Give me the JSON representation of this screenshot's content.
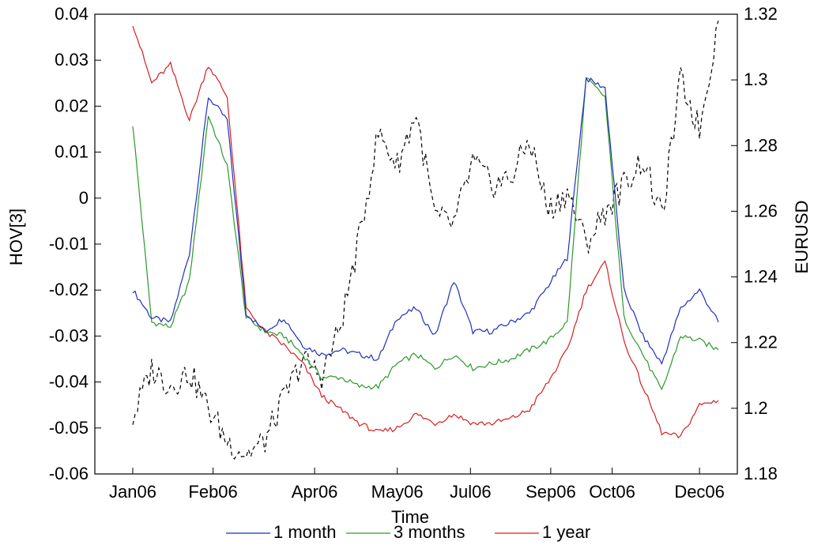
{
  "chart_data": {
    "type": "line",
    "title": "",
    "xlabel": "Time",
    "ylabel_left": "HOV[3]",
    "ylabel_right": "EURUSD",
    "x_ticks": [
      "Jan06",
      "Feb06",
      "Apr06",
      "May06",
      "Jul06",
      "Sep06",
      "Oct06",
      "Dec06"
    ],
    "ylim_left": [
      -0.06,
      0.04
    ],
    "ylim_right": [
      1.18,
      1.32
    ],
    "y_ticks_left": [
      "-0.06",
      "-0.05",
      "-0.04",
      "-0.03",
      "-0.02",
      "-0.01",
      "0",
      "0.01",
      "0.02",
      "0.03",
      "0.04"
    ],
    "y_ticks_right": [
      "1.18",
      "1.2",
      "1.22",
      "1.24",
      "1.26",
      "1.28",
      "1.3",
      "1.32"
    ],
    "grid": false,
    "legend_position": "bottom",
    "x_index": [
      0,
      8,
      16,
      24,
      32,
      40,
      48,
      56,
      64,
      72,
      80,
      88,
      96,
      104,
      112,
      120,
      128,
      136,
      144,
      152,
      160,
      168,
      176,
      184,
      192,
      200,
      208,
      216,
      224,
      232,
      240,
      248
    ],
    "series": [
      {
        "name": "1 month",
        "axis": "left",
        "color": "#1f2fbf",
        "dash": false,
        "values": [
          -0.02,
          -0.026,
          -0.027,
          -0.012,
          0.022,
          0.017,
          -0.025,
          -0.029,
          -0.026,
          -0.032,
          -0.034,
          -0.033,
          -0.034,
          -0.035,
          -0.026,
          -0.024,
          -0.03,
          -0.018,
          -0.029,
          -0.029,
          -0.027,
          -0.025,
          -0.019,
          -0.013,
          0.026,
          0.024,
          -0.02,
          -0.03,
          -0.036,
          -0.024,
          -0.02,
          -0.027
        ]
      },
      {
        "name": "3 months",
        "axis": "left",
        "color": "#2a9a2a",
        "dash": false,
        "values": [
          0.016,
          -0.027,
          -0.028,
          -0.018,
          0.018,
          0.007,
          -0.026,
          -0.029,
          -0.03,
          -0.034,
          -0.039,
          -0.039,
          -0.041,
          -0.041,
          -0.036,
          -0.034,
          -0.037,
          -0.034,
          -0.037,
          -0.036,
          -0.035,
          -0.033,
          -0.031,
          -0.027,
          0.026,
          0.022,
          -0.026,
          -0.034,
          -0.042,
          -0.03,
          -0.031,
          -0.033
        ]
      },
      {
        "name": "1 year",
        "axis": "left",
        "color": "#d42020",
        "dash": false,
        "values": [
          0.038,
          0.025,
          0.029,
          0.017,
          0.029,
          0.022,
          -0.024,
          -0.029,
          -0.032,
          -0.036,
          -0.043,
          -0.046,
          -0.049,
          -0.051,
          -0.05,
          -0.047,
          -0.049,
          -0.047,
          -0.049,
          -0.049,
          -0.048,
          -0.046,
          -0.04,
          -0.033,
          -0.02,
          -0.014,
          -0.031,
          -0.041,
          -0.051,
          -0.052,
          -0.045,
          -0.044
        ]
      },
      {
        "name": "",
        "axis": "right",
        "color": "#000000",
        "dash": true,
        "values": [
          1.197,
          1.212,
          1.207,
          1.211,
          1.2,
          1.19,
          1.186,
          1.19,
          1.203,
          1.215,
          1.21,
          1.225,
          1.252,
          1.284,
          1.274,
          1.29,
          1.258,
          1.256,
          1.275,
          1.268,
          1.27,
          1.282,
          1.26,
          1.266,
          1.25,
          1.26,
          1.268,
          1.276,
          1.258,
          1.3,
          1.285,
          1.318
        ]
      }
    ],
    "legend": [
      "1 month",
      "3 months",
      "1 year"
    ]
  }
}
